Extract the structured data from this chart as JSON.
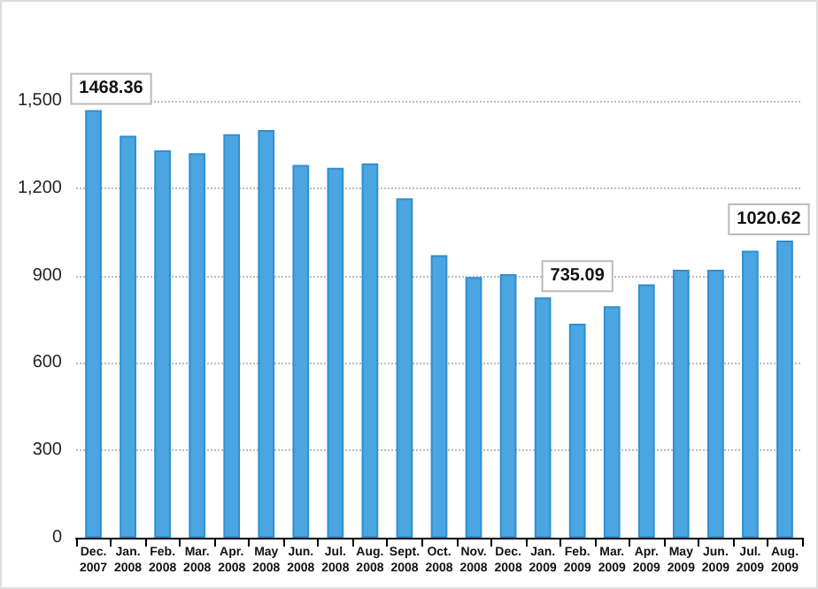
{
  "chart_data": {
    "type": "bar",
    "categories": [
      "Dec.\n2007",
      "Jan.\n2008",
      "Feb.\n2008",
      "Mar.\n2008",
      "Apr.\n2008",
      "May\n2008",
      "Jun.\n2008",
      "Jul.\n2008",
      "Aug.\n2008",
      "Sept.\n2008",
      "Oct.\n2008",
      "Nov.\n2008",
      "Dec.\n2008",
      "Jan.\n2009",
      "Feb.\n2009",
      "Mar.\n2009",
      "Apr.\n2009",
      "May\n2009",
      "Jun.\n2009",
      "Jul.\n2009",
      "Aug.\n2009"
    ],
    "values": [
      1468.36,
      1380,
      1330,
      1320,
      1385,
      1400,
      1280,
      1270,
      1285,
      1165,
      970,
      895,
      905,
      825,
      735.09,
      795,
      870,
      920,
      920,
      985,
      1020.62
    ],
    "value_labels": [
      "1468.36",
      null,
      null,
      null,
      null,
      null,
      null,
      null,
      null,
      null,
      null,
      null,
      null,
      null,
      "735.09",
      null,
      null,
      null,
      null,
      null,
      "1020.62"
    ],
    "color": "#4aa5e0",
    "ylim": [
      0,
      1500
    ],
    "yticks": [
      0,
      300,
      600,
      900,
      {
        "value": 1200,
        "label": "1,200"
      },
      {
        "value": 1500,
        "label": "1,500"
      }
    ],
    "grid": "y"
  }
}
